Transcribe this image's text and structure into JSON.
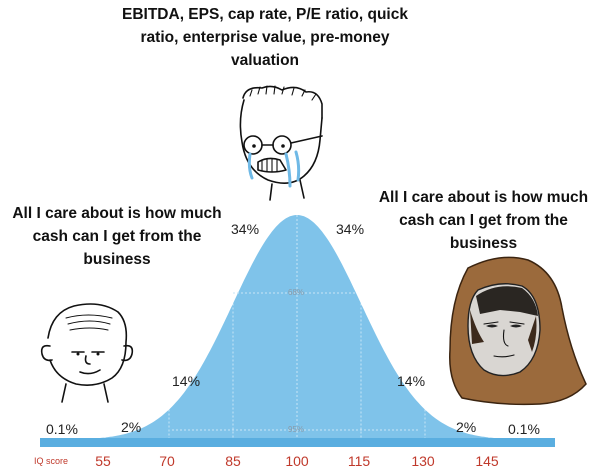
{
  "captions": {
    "top": "EBITDA, EPS, cap rate, P/E ratio, quick ratio, enterprise value, pre-money valuation",
    "left": "All I care about is how much cash can I get from the business",
    "right": "All I care about is how much cash can I get from the business"
  },
  "chart_data": {
    "type": "area",
    "x_axis_label": "IQ score",
    "x_ticks": [
      "55",
      "70",
      "85",
      "100",
      "115",
      "130",
      "145"
    ],
    "segments": [
      {
        "label": "0.1%",
        "from": null,
        "to": 55
      },
      {
        "label": "2%",
        "from": 55,
        "to": 70
      },
      {
        "label": "14%",
        "from": 70,
        "to": 85
      },
      {
        "label": "34%",
        "from": 85,
        "to": 100
      },
      {
        "label": "34%",
        "from": 100,
        "to": 115
      },
      {
        "label": "14%",
        "from": 115,
        "to": 130
      },
      {
        "label": "2%",
        "from": 130,
        "to": 145
      },
      {
        "label": "0.1%",
        "from": 145,
        "to": null
      }
    ],
    "inner_labels": [
      "68%",
      "95%"
    ],
    "mean": 100,
    "sd": 15,
    "fill_color": "#7fc3ea",
    "axis_color": "#5aaee0",
    "tick_label_color": "#c0392b"
  },
  "characters": {
    "left": "simple-wojak",
    "center": "crying-nerd-wojak",
    "right": "hooded-monk-wojak"
  }
}
